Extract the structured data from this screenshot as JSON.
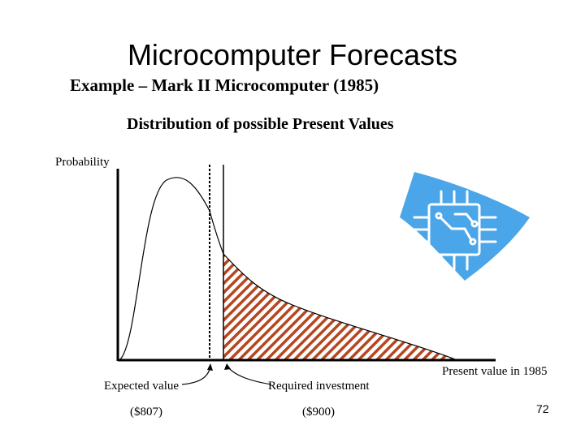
{
  "slide": {
    "title": "Microcomputer Forecasts",
    "subtitle": "Example – Mark II Microcomputer (1985)",
    "heading": "Distribution of possible Present Values",
    "page_number": "72"
  },
  "diagram": {
    "y_axis_label": "Probability",
    "x_axis_label": "Present value in 1985",
    "expected_value": {
      "label": "Expected value",
      "value": "($807)"
    },
    "required_investment": {
      "label": "Required investment",
      "value": "($900)"
    },
    "colors": {
      "hatch": "#b5461f",
      "axis": "#000000",
      "logo_fill": "#4aa6e8",
      "logo_line": "#ffffff"
    },
    "icon": "circuit-chip-icon"
  }
}
